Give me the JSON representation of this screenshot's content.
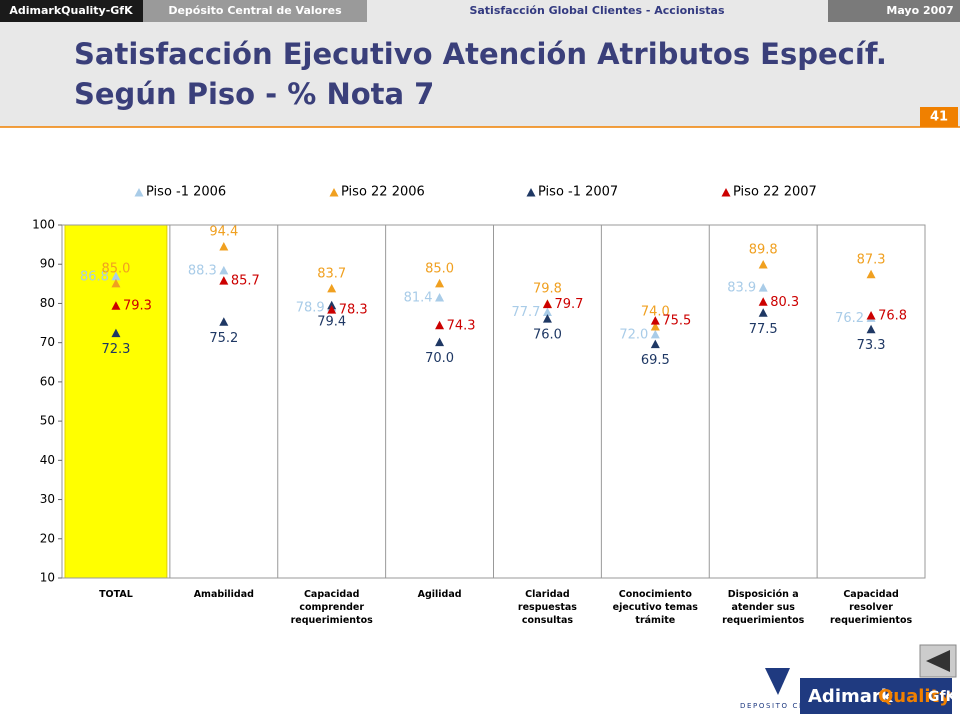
{
  "header": {
    "brand": "AdimarkQuality-GfK",
    "client": "Depósito Central de Valores",
    "study": "Satisfacción Global Clientes - Accionistas",
    "date": "Mayo 2007",
    "title_line1": "Satisfacción Ejecutivo Atención Atributos Específ.",
    "title_line2": "Según Piso - % Nota 7",
    "page": "41"
  },
  "footer": {
    "dcv_logo": "DEPOSITO CENTRAL DE VALORES",
    "adimark_logo_a": "Adimark",
    "adimark_logo_b": "Quality",
    "adimark_logo_c": "GfK"
  },
  "chart_data": {
    "type": "scatter",
    "categories": [
      "TOTAL",
      "Amabilidad",
      "Capacidad\ncomprender\nrequerimientos",
      "Agilidad",
      "Claridad\nrespuestas\nconsultas",
      "Conocimiento\nejecutivo temas\ntrámite",
      "Disposición a\natender sus\nrequerimientos",
      "Capacidad\nresolver\nrequerimientos"
    ],
    "series": [
      {
        "name": "Piso -1 2006",
        "color": "#a9cce8",
        "values": [
          86.8,
          88.3,
          78.9,
          81.4,
          77.7,
          72.0,
          83.9,
          76.2
        ],
        "value_labels": [
          "86.8",
          "88.3",
          "78.9",
          "81.4",
          "77.7",
          "72.0",
          "83.9",
          "76.2"
        ]
      },
      {
        "name": "Piso 22 2006",
        "color": "#f0a020",
        "values": [
          85.0,
          94.4,
          83.7,
          85.0,
          79.8,
          74.0,
          89.8,
          87.3
        ],
        "value_labels": [
          "85.0",
          "94.4",
          "83.7",
          "85.0",
          "79.8",
          "74.0",
          "89.8",
          "87.3"
        ]
      },
      {
        "name": "Piso -1 2007",
        "color": "#1f3864",
        "values": [
          72.3,
          75.2,
          79.4,
          70.0,
          76.0,
          69.5,
          77.5,
          73.3
        ],
        "value_labels": [
          "72.3",
          "75.2",
          "79.4",
          "70.0",
          "76.0",
          "69.5",
          "77.5",
          "73.3"
        ]
      },
      {
        "name": "Piso 22 2007",
        "color": "#cc0000",
        "values": [
          79.3,
          85.7,
          78.3,
          74.3,
          79.7,
          75.5,
          80.3,
          76.8
        ],
        "value_labels": [
          "79.3",
          "85.7",
          "78.3",
          "74.3",
          "79.7",
          "75.5",
          "80.3",
          "76.8"
        ]
      }
    ],
    "ylim": [
      10,
      100
    ],
    "yticks": [
      10,
      20,
      30,
      40,
      50,
      60,
      70,
      80,
      90,
      100
    ],
    "highlight": "#ffff00"
  }
}
